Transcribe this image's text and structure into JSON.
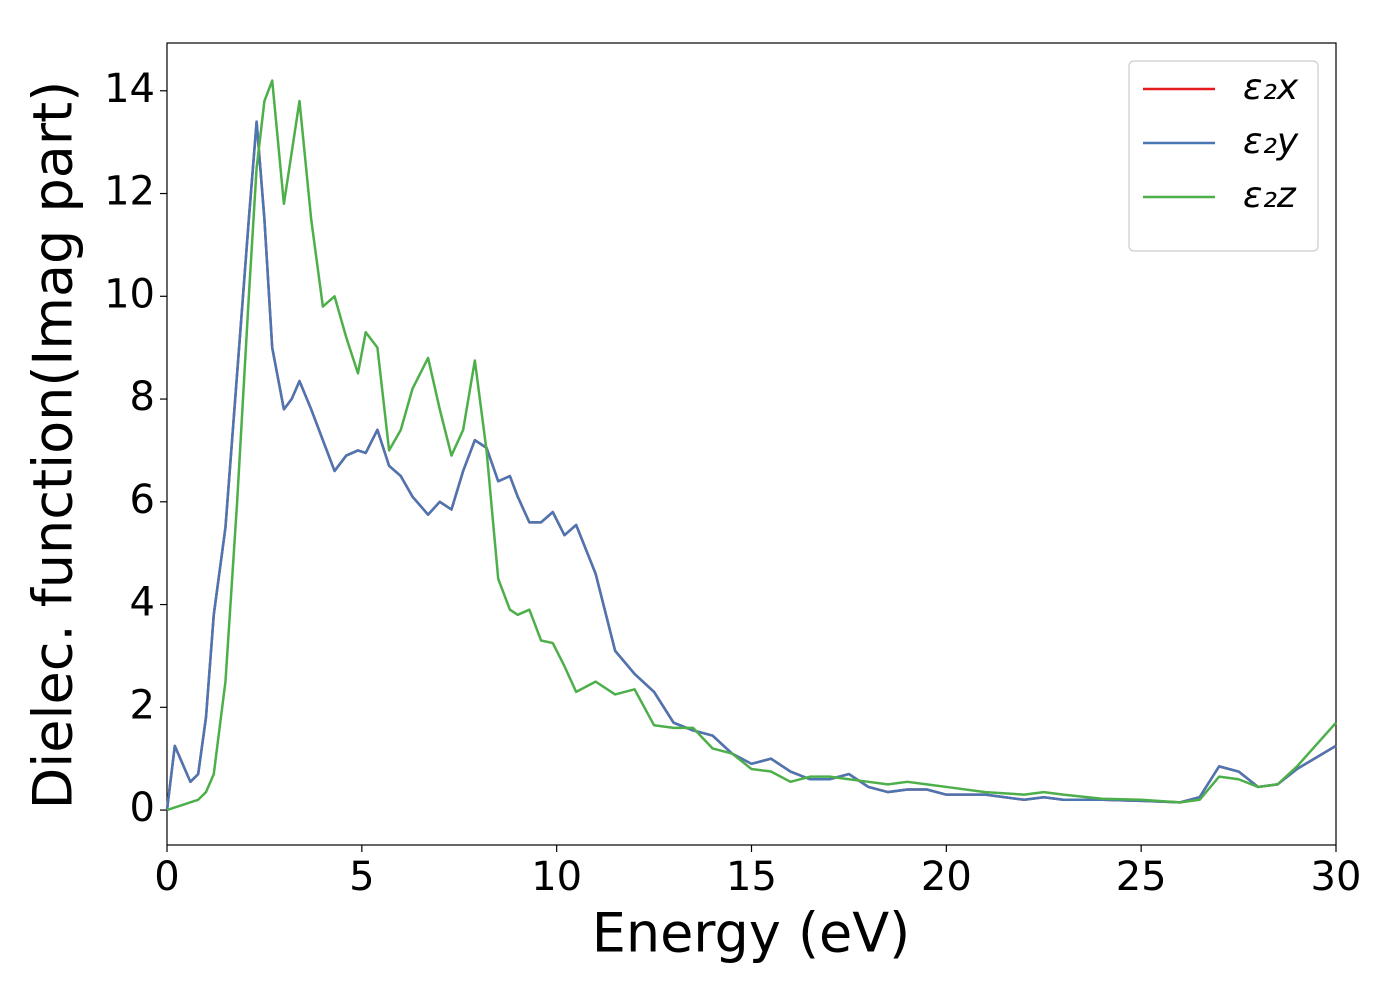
{
  "chart_data": {
    "type": "line",
    "xlabel": "Energy (eV)",
    "ylabel": "Dielec. function(Imag part)",
    "x": [
      0,
      0.2,
      0.4,
      0.6,
      0.8,
      1.0,
      1.2,
      1.5,
      1.8,
      2.1,
      2.3,
      2.5,
      2.7,
      3.0,
      3.2,
      3.4,
      3.7,
      4.0,
      4.3,
      4.6,
      4.9,
      5.1,
      5.4,
      5.7,
      6.0,
      6.3,
      6.7,
      7.0,
      7.3,
      7.6,
      7.9,
      8.2,
      8.5,
      8.8,
      9.0,
      9.3,
      9.6,
      9.9,
      10.2,
      10.5,
      11.0,
      11.5,
      12.0,
      12.5,
      13.0,
      13.5,
      14.0,
      14.5,
      15.0,
      15.5,
      16.0,
      16.5,
      17.0,
      17.5,
      18.0,
      18.5,
      19.0,
      19.5,
      20.0,
      21.0,
      22.0,
      22.5,
      23.0,
      24.0,
      25.0,
      26.0,
      26.5,
      27.0,
      27.5,
      28.0,
      28.5,
      29.0,
      30.0
    ],
    "series": [
      {
        "name": "ε₂x",
        "color": "#e41a1c",
        "values": [
          0,
          1.25,
          0.9,
          0.55,
          0.7,
          1.8,
          3.8,
          5.5,
          8.5,
          11.5,
          13.4,
          11.5,
          9,
          7.8,
          8.0,
          8.35,
          7.8,
          7.2,
          6.6,
          6.9,
          7.0,
          6.95,
          7.4,
          6.7,
          6.5,
          6.1,
          5.75,
          6.0,
          5.85,
          6.6,
          7.2,
          7.05,
          6.4,
          6.5,
          6.1,
          5.6,
          5.6,
          5.8,
          5.35,
          5.55,
          4.6,
          3.1,
          2.65,
          2.3,
          1.7,
          1.55,
          1.45,
          1.1,
          0.9,
          1.0,
          0.75,
          0.6,
          0.6,
          0.7,
          0.45,
          0.35,
          0.4,
          0.4,
          0.3,
          0.3,
          0.2,
          0.25,
          0.2,
          0.2,
          0.18,
          0.15,
          0.25,
          0.85,
          0.75,
          0.45,
          0.5,
          0.8,
          1.25
        ]
      },
      {
        "name": "ε₂y",
        "color": "#4a77b4",
        "values": [
          0,
          1.25,
          0.9,
          0.55,
          0.7,
          1.8,
          3.8,
          5.5,
          8.5,
          11.5,
          13.4,
          11.5,
          9,
          7.8,
          8.0,
          8.35,
          7.8,
          7.2,
          6.6,
          6.9,
          7.0,
          6.95,
          7.4,
          6.7,
          6.5,
          6.1,
          5.75,
          6.0,
          5.85,
          6.6,
          7.2,
          7.05,
          6.4,
          6.5,
          6.1,
          5.6,
          5.6,
          5.8,
          5.35,
          5.55,
          4.6,
          3.1,
          2.65,
          2.3,
          1.7,
          1.55,
          1.45,
          1.1,
          0.9,
          1.0,
          0.75,
          0.6,
          0.6,
          0.7,
          0.45,
          0.35,
          0.4,
          0.4,
          0.3,
          0.3,
          0.2,
          0.25,
          0.2,
          0.2,
          0.18,
          0.15,
          0.25,
          0.85,
          0.75,
          0.45,
          0.5,
          0.8,
          1.25
        ]
      },
      {
        "name": "ε₂z",
        "color": "#4daf4a",
        "values": [
          0,
          0.05,
          0.1,
          0.15,
          0.2,
          0.35,
          0.7,
          2.5,
          6.0,
          10.0,
          12.5,
          13.8,
          14.2,
          11.8,
          12.8,
          13.8,
          11.5,
          9.8,
          10.0,
          9.2,
          8.5,
          9.3,
          9.0,
          7.0,
          7.4,
          8.2,
          8.8,
          7.8,
          6.9,
          7.4,
          8.75,
          7.0,
          4.5,
          3.9,
          3.8,
          3.9,
          3.3,
          3.25,
          2.8,
          2.3,
          2.5,
          2.25,
          2.35,
          1.65,
          1.6,
          1.6,
          1.2,
          1.1,
          0.8,
          0.75,
          0.55,
          0.65,
          0.65,
          0.6,
          0.55,
          0.5,
          0.55,
          0.5,
          0.45,
          0.35,
          0.3,
          0.35,
          0.3,
          0.22,
          0.2,
          0.15,
          0.2,
          0.65,
          0.6,
          0.45,
          0.5,
          0.85,
          1.7
        ]
      }
    ],
    "xlim": [
      0,
      30
    ],
    "xticks": [
      0,
      5,
      10,
      15,
      20,
      25,
      30
    ],
    "ylim": [
      -0.68,
      14.93
    ],
    "yticks": [
      0,
      2,
      4,
      6,
      8,
      10,
      12,
      14
    ],
    "legend": "upper right",
    "grid": false
  }
}
